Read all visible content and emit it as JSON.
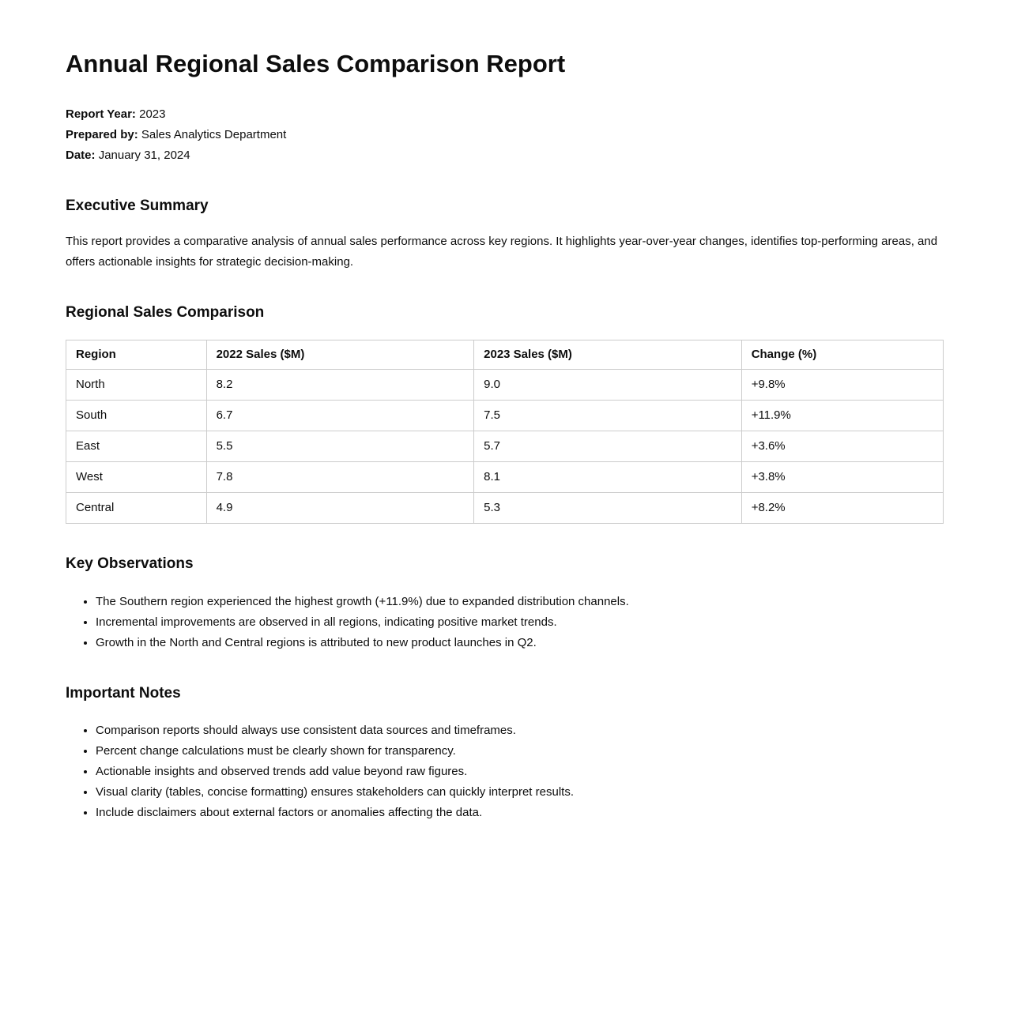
{
  "page": {
    "title": "Annual Regional Sales Comparison Report",
    "meta": {
      "report_year_label": "Report Year:",
      "report_year_value": "2023",
      "prepared_by_label": "Prepared by:",
      "prepared_by_value": "Sales Analytics Department",
      "date_label": "Date:",
      "date_value": "January 31, 2024"
    },
    "executive_summary": {
      "heading": "Executive Summary",
      "body": "This report provides a comparative analysis of annual sales performance across key regions. It highlights year-over-year changes, identifies top-performing areas, and offers actionable insights for strategic decision-making."
    },
    "regional_sales": {
      "heading": "Regional Sales Comparison",
      "table": {
        "columns": [
          "Region",
          "2022 Sales ($M)",
          "2023 Sales ($M)",
          "Change (%)"
        ],
        "rows": [
          [
            "North",
            "8.2",
            "9.0",
            "+9.8%"
          ],
          [
            "South",
            "6.7",
            "7.5",
            "+11.9%"
          ],
          [
            "East",
            "5.5",
            "5.7",
            "+3.6%"
          ],
          [
            "West",
            "7.8",
            "8.1",
            "+3.8%"
          ],
          [
            "Central",
            "4.9",
            "5.3",
            "+8.2%"
          ]
        ]
      }
    },
    "key_observations": {
      "heading": "Key Observations",
      "items": [
        "The Southern region experienced the highest growth (+11.9%) due to expanded distribution channels.",
        "Incremental improvements are observed in all regions, indicating positive market trends.",
        "Growth in the North and Central regions is attributed to new product launches in Q2."
      ]
    },
    "important_notes": {
      "heading": "Important Notes",
      "items": [
        "Comparison reports should always use consistent data sources and timeframes.",
        "Percent change calculations must be clearly shown for transparency.",
        "Actionable insights and observed trends add value beyond raw figures.",
        "Visual clarity (tables, concise formatting) ensures stakeholders can quickly interpret results.",
        "Include disclaimers about external factors or anomalies affecting the data."
      ]
    },
    "colors": {
      "background": "#ffffff",
      "text": "#0d0d0d",
      "table_border": "#cccccc"
    }
  }
}
